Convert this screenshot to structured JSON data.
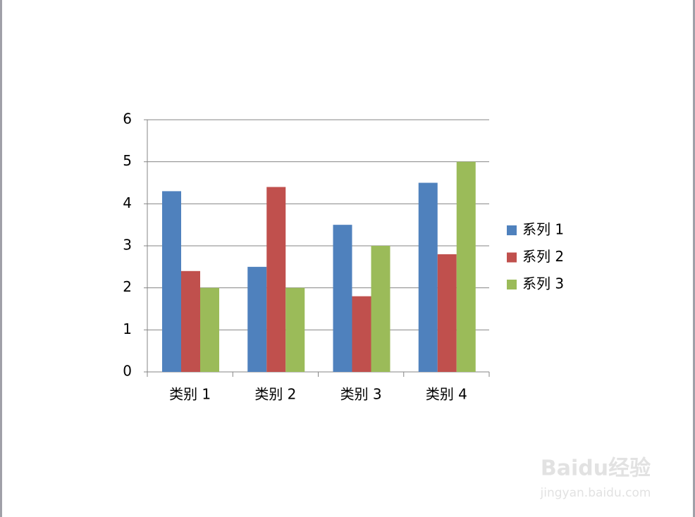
{
  "chart_data": {
    "type": "bar",
    "categories": [
      "类别 1",
      "类别 2",
      "类别 3",
      "类别 4"
    ],
    "series": [
      {
        "name": "系列 1",
        "color": "#4f81bd",
        "values": [
          4.3,
          2.5,
          3.5,
          4.5
        ]
      },
      {
        "name": "系列 2",
        "color": "#c0504d",
        "values": [
          2.4,
          4.4,
          1.8,
          2.8
        ]
      },
      {
        "name": "系列 3",
        "color": "#9bbb59",
        "values": [
          2,
          2,
          3,
          5
        ]
      }
    ],
    "ylim": [
      0,
      6
    ],
    "yticks": [
      0,
      1,
      2,
      3,
      4,
      5,
      6
    ],
    "grid": true,
    "legend": "right"
  },
  "watermark": [
    "Baidu经验",
    "jingyan.baidu.com"
  ]
}
